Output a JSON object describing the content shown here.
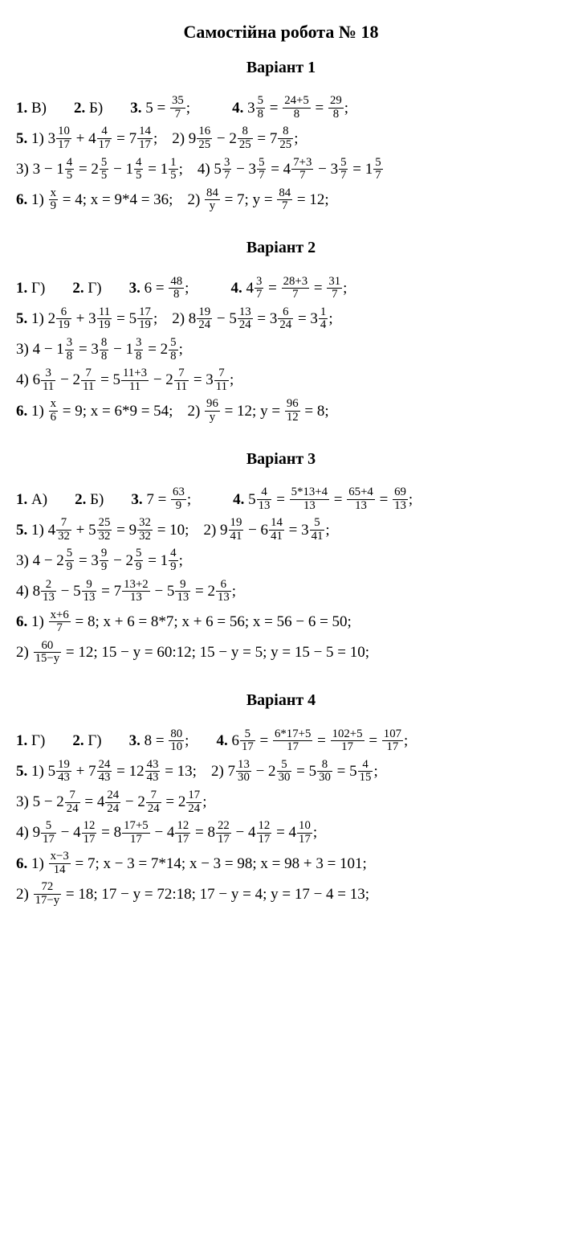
{
  "title": "Самостійна робота № 18",
  "variants": [
    {
      "heading": "Варіант 1",
      "lines": [
        [
          {
            "p": "1."
          },
          {
            "t": " В)"
          },
          {
            "sp2": true
          },
          {
            "p": "2."
          },
          {
            "t": " Б)"
          },
          {
            "sp2": true
          },
          {
            "p": "3."
          },
          {
            "t": " 5 = "
          },
          {
            "f": [
              "35",
              "7"
            ]
          },
          {
            "t": ";"
          },
          {
            "sp2": true
          },
          {
            "sp": true
          },
          {
            "p": "4."
          },
          {
            "t": " 3"
          },
          {
            "f": [
              "5",
              "8"
            ]
          },
          {
            "t": " = "
          },
          {
            "f": [
              "24+5",
              "8"
            ]
          },
          {
            "t": " = "
          },
          {
            "f": [
              "29",
              "8"
            ]
          },
          {
            "t": ";"
          }
        ],
        [
          {
            "p": "5."
          },
          {
            "t": " 1) 3"
          },
          {
            "f": [
              "10",
              "17"
            ]
          },
          {
            "t": " + 4"
          },
          {
            "f": [
              "4",
              "17"
            ]
          },
          {
            "t": " = 7"
          },
          {
            "f": [
              "14",
              "17"
            ]
          },
          {
            "t": ";"
          },
          {
            "sp": true
          },
          {
            "t": "2) 9"
          },
          {
            "f": [
              "16",
              "25"
            ]
          },
          {
            "t": " − 2"
          },
          {
            "f": [
              "8",
              "25"
            ]
          },
          {
            "t": " = 7"
          },
          {
            "f": [
              "8",
              "25"
            ]
          },
          {
            "t": ";"
          }
        ],
        [
          {
            "t": "3) 3 − 1"
          },
          {
            "f": [
              "4",
              "5"
            ]
          },
          {
            "t": " = 2"
          },
          {
            "f": [
              "5",
              "5"
            ]
          },
          {
            "t": " − 1"
          },
          {
            "f": [
              "4",
              "5"
            ]
          },
          {
            "t": " = 1"
          },
          {
            "f": [
              "1",
              "5"
            ]
          },
          {
            "t": ";"
          },
          {
            "sp": true
          },
          {
            "t": "4) 5"
          },
          {
            "f": [
              "3",
              "7"
            ]
          },
          {
            "t": " − 3"
          },
          {
            "f": [
              "5",
              "7"
            ]
          },
          {
            "t": " = 4"
          },
          {
            "f": [
              "7+3",
              "7"
            ]
          },
          {
            "t": " − 3"
          },
          {
            "f": [
              "5",
              "7"
            ]
          },
          {
            "t": " = 1"
          },
          {
            "f": [
              "5",
              "7"
            ]
          }
        ],
        [
          {
            "p": "6."
          },
          {
            "t": " 1) "
          },
          {
            "f": [
              "x",
              "9"
            ]
          },
          {
            "t": " = 4;   x = 9*4 = 36;"
          },
          {
            "sp": true
          },
          {
            "t": "2) "
          },
          {
            "f": [
              "84",
              "y"
            ]
          },
          {
            "t": " = 7;   y = "
          },
          {
            "f": [
              "84",
              "7"
            ]
          },
          {
            "t": " = 12;"
          }
        ]
      ]
    },
    {
      "heading": "Варіант 2",
      "lines": [
        [
          {
            "p": "1."
          },
          {
            "t": " Г)"
          },
          {
            "sp2": true
          },
          {
            "p": "2."
          },
          {
            "t": " Г)"
          },
          {
            "sp2": true
          },
          {
            "p": "3."
          },
          {
            "t": " 6 = "
          },
          {
            "f": [
              "48",
              "8"
            ]
          },
          {
            "t": ";"
          },
          {
            "sp2": true
          },
          {
            "sp": true
          },
          {
            "p": "4."
          },
          {
            "t": " 4"
          },
          {
            "f": [
              "3",
              "7"
            ]
          },
          {
            "t": " = "
          },
          {
            "f": [
              "28+3",
              "7"
            ]
          },
          {
            "t": " = "
          },
          {
            "f": [
              "31",
              "7"
            ]
          },
          {
            "t": ";"
          }
        ],
        [
          {
            "p": "5."
          },
          {
            "t": " 1) 2"
          },
          {
            "f": [
              "6",
              "19"
            ]
          },
          {
            "t": " + 3"
          },
          {
            "f": [
              "11",
              "19"
            ]
          },
          {
            "t": " = 5"
          },
          {
            "f": [
              "17",
              "19"
            ]
          },
          {
            "t": ";"
          },
          {
            "sp": true
          },
          {
            "t": "2) 8"
          },
          {
            "f": [
              "19",
              "24"
            ]
          },
          {
            "t": " − 5"
          },
          {
            "f": [
              "13",
              "24"
            ]
          },
          {
            "t": " = 3"
          },
          {
            "f": [
              "6",
              "24"
            ]
          },
          {
            "t": " = 3"
          },
          {
            "f": [
              "1",
              "4"
            ]
          },
          {
            "t": ";"
          }
        ],
        [
          {
            "t": "3) 4 − 1"
          },
          {
            "f": [
              "3",
              "8"
            ]
          },
          {
            "t": " = 3"
          },
          {
            "f": [
              "8",
              "8"
            ]
          },
          {
            "t": " − 1"
          },
          {
            "f": [
              "3",
              "8"
            ]
          },
          {
            "t": " = 2"
          },
          {
            "f": [
              "5",
              "8"
            ]
          },
          {
            "t": ";"
          }
        ],
        [
          {
            "t": "4) 6"
          },
          {
            "f": [
              "3",
              "11"
            ]
          },
          {
            "t": " − 2"
          },
          {
            "f": [
              "7",
              "11"
            ]
          },
          {
            "t": " = 5"
          },
          {
            "f": [
              "11+3",
              "11"
            ]
          },
          {
            "t": " − 2"
          },
          {
            "f": [
              "7",
              "11"
            ]
          },
          {
            "t": " = 3"
          },
          {
            "f": [
              "7",
              "11"
            ]
          },
          {
            "t": ";"
          }
        ],
        [
          {
            "p": "6."
          },
          {
            "t": " 1) "
          },
          {
            "f": [
              "x",
              "6"
            ]
          },
          {
            "t": " = 9;   x = 6*9 = 54;"
          },
          {
            "sp": true
          },
          {
            "t": "2) "
          },
          {
            "f": [
              "96",
              "y"
            ]
          },
          {
            "t": " = 12;   y = "
          },
          {
            "f": [
              "96",
              "12"
            ]
          },
          {
            "t": " = 8;"
          }
        ]
      ]
    },
    {
      "heading": "Варіант 3",
      "lines": [
        [
          {
            "p": "1."
          },
          {
            "t": " А)"
          },
          {
            "sp2": true
          },
          {
            "p": "2."
          },
          {
            "t": " Б)"
          },
          {
            "sp2": true
          },
          {
            "p": "3."
          },
          {
            "t": " 7 = "
          },
          {
            "f": [
              "63",
              "9"
            ]
          },
          {
            "t": ";"
          },
          {
            "sp2": true
          },
          {
            "sp": true
          },
          {
            "p": "4."
          },
          {
            "t": " 5"
          },
          {
            "f": [
              "4",
              "13"
            ]
          },
          {
            "t": " = "
          },
          {
            "f": [
              "5*13+4",
              "13"
            ]
          },
          {
            "t": " = "
          },
          {
            "f": [
              "65+4",
              "13"
            ]
          },
          {
            "t": " = "
          },
          {
            "f": [
              "69",
              "13"
            ]
          },
          {
            "t": ";"
          }
        ],
        [
          {
            "p": "5."
          },
          {
            "t": " 1) 4"
          },
          {
            "f": [
              "7",
              "32"
            ]
          },
          {
            "t": " + 5"
          },
          {
            "f": [
              "25",
              "32"
            ]
          },
          {
            "t": " = 9"
          },
          {
            "f": [
              "32",
              "32"
            ]
          },
          {
            "t": " = 10;"
          },
          {
            "sp": true
          },
          {
            "t": "2) 9"
          },
          {
            "f": [
              "19",
              "41"
            ]
          },
          {
            "t": " − 6"
          },
          {
            "f": [
              "14",
              "41"
            ]
          },
          {
            "t": " = 3"
          },
          {
            "f": [
              "5",
              "41"
            ]
          },
          {
            "t": ";"
          }
        ],
        [
          {
            "t": "3) 4 − 2"
          },
          {
            "f": [
              "5",
              "9"
            ]
          },
          {
            "t": " = 3"
          },
          {
            "f": [
              "9",
              "9"
            ]
          },
          {
            "t": " − 2"
          },
          {
            "f": [
              "5",
              "9"
            ]
          },
          {
            "t": " = 1"
          },
          {
            "f": [
              "4",
              "9"
            ]
          },
          {
            "t": ";"
          }
        ],
        [
          {
            "t": "4) 8"
          },
          {
            "f": [
              "2",
              "13"
            ]
          },
          {
            "t": " − 5"
          },
          {
            "f": [
              "9",
              "13"
            ]
          },
          {
            "t": " = 7"
          },
          {
            "f": [
              "13+2",
              "13"
            ]
          },
          {
            "t": " − 5"
          },
          {
            "f": [
              "9",
              "13"
            ]
          },
          {
            "t": " = 2"
          },
          {
            "f": [
              "6",
              "13"
            ]
          },
          {
            "t": ";"
          }
        ],
        [
          {
            "p": "6."
          },
          {
            "t": " 1) "
          },
          {
            "f": [
              "x+6",
              "7"
            ]
          },
          {
            "t": " = 8;   x + 6 = 8*7;   x + 6 = 56;   x = 56 − 6 = 50;"
          }
        ],
        [
          {
            "t": "2) "
          },
          {
            "f": [
              "60",
              "15−y"
            ]
          },
          {
            "t": " = 12;   15 − y = 60:12;   15 − y = 5;   y = 15 − 5 = 10;"
          }
        ]
      ]
    },
    {
      "heading": "Варіант 4",
      "lines": [
        [
          {
            "p": "1."
          },
          {
            "t": " Г)"
          },
          {
            "sp2": true
          },
          {
            "p": "2."
          },
          {
            "t": " Г)"
          },
          {
            "sp2": true
          },
          {
            "p": "3."
          },
          {
            "t": " 8 = "
          },
          {
            "f": [
              "80",
              "10"
            ]
          },
          {
            "t": ";"
          },
          {
            "sp2": true
          },
          {
            "p": "4."
          },
          {
            "t": " 6"
          },
          {
            "f": [
              "5",
              "17"
            ]
          },
          {
            "t": " = "
          },
          {
            "f": [
              "6*17+5",
              "17"
            ]
          },
          {
            "t": " = "
          },
          {
            "f": [
              "102+5",
              "17"
            ]
          },
          {
            "t": " = "
          },
          {
            "f": [
              "107",
              "17"
            ]
          },
          {
            "t": ";"
          }
        ],
        [
          {
            "p": "5."
          },
          {
            "t": " 1) 5"
          },
          {
            "f": [
              "19",
              "43"
            ]
          },
          {
            "t": " + 7"
          },
          {
            "f": [
              "24",
              "43"
            ]
          },
          {
            "t": " = 12"
          },
          {
            "f": [
              "43",
              "43"
            ]
          },
          {
            "t": " = 13;"
          },
          {
            "sp": true
          },
          {
            "t": "2) 7"
          },
          {
            "f": [
              "13",
              "30"
            ]
          },
          {
            "t": " − 2"
          },
          {
            "f": [
              "5",
              "30"
            ]
          },
          {
            "t": " = 5"
          },
          {
            "f": [
              "8",
              "30"
            ]
          },
          {
            "t": " = 5"
          },
          {
            "f": [
              "4",
              "15"
            ]
          },
          {
            "t": ";"
          }
        ],
        [
          {
            "t": "3) 5 − 2"
          },
          {
            "f": [
              "7",
              "24"
            ]
          },
          {
            "t": " = 4"
          },
          {
            "f": [
              "24",
              "24"
            ]
          },
          {
            "t": " − 2"
          },
          {
            "f": [
              "7",
              "24"
            ]
          },
          {
            "t": " = 2"
          },
          {
            "f": [
              "17",
              "24"
            ]
          },
          {
            "t": ";"
          }
        ],
        [
          {
            "t": "4) 9"
          },
          {
            "f": [
              "5",
              "17"
            ]
          },
          {
            "t": " − 4"
          },
          {
            "f": [
              "12",
              "17"
            ]
          },
          {
            "t": " = 8"
          },
          {
            "f": [
              "17+5",
              "17"
            ]
          },
          {
            "t": " − 4"
          },
          {
            "f": [
              "12",
              "17"
            ]
          },
          {
            "t": " = 8"
          },
          {
            "f": [
              "22",
              "17"
            ]
          },
          {
            "t": " − 4"
          },
          {
            "f": [
              "12",
              "17"
            ]
          },
          {
            "t": " = 4"
          },
          {
            "f": [
              "10",
              "17"
            ]
          },
          {
            "t": ";"
          }
        ],
        [
          {
            "p": "6."
          },
          {
            "t": " 1) "
          },
          {
            "f": [
              "x−3",
              "14"
            ]
          },
          {
            "t": " = 7;   x − 3 = 7*14;   x − 3 = 98;   x = 98 + 3 = 101;"
          }
        ],
        [
          {
            "t": "2) "
          },
          {
            "f": [
              "72",
              "17−y"
            ]
          },
          {
            "t": " = 18;   17 − y = 72:18;   17 − y = 4;   y = 17 − 4 = 13;"
          }
        ]
      ]
    }
  ]
}
